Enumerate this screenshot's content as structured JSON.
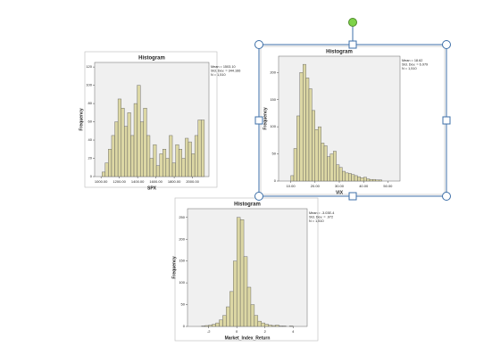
{
  "chart_data": [
    {
      "type": "histogram",
      "title": "Histogram",
      "x_label": "SPX",
      "y_label": "Frequency",
      "stats": [
        "Mean = 1503.10",
        "Std. Dev. = 344.166",
        "N = 1,510"
      ],
      "bins": [
        1010,
        1045,
        1080,
        1115,
        1150,
        1185,
        1220,
        1255,
        1290,
        1325,
        1360,
        1395,
        1430,
        1465,
        1500,
        1535,
        1570,
        1605,
        1640,
        1675,
        1710,
        1745,
        1780,
        1815,
        1850,
        1885,
        1920,
        1955,
        1990,
        2025,
        2060,
        2095,
        2130
      ],
      "values": [
        5,
        15,
        30,
        45,
        60,
        85,
        75,
        55,
        70,
        45,
        80,
        100,
        60,
        75,
        45,
        20,
        35,
        12,
        25,
        30,
        20,
        45,
        15,
        35,
        30,
        20,
        42,
        38,
        25,
        45,
        62,
        62
      ],
      "color": "#dcd7a4",
      "xlim": [
        930,
        2180
      ],
      "xticks": [
        {
          "value": 1000,
          "label": "1000.00"
        },
        {
          "value": 1200,
          "label": "1200.00"
        },
        {
          "value": 1400,
          "label": "1400.00"
        },
        {
          "value": 1600,
          "label": "1600.00"
        },
        {
          "value": 1800,
          "label": "1800.00"
        },
        {
          "value": 2000,
          "label": "2000.00"
        }
      ],
      "ylim": [
        0,
        125
      ],
      "yticks": [
        0,
        20,
        40,
        60,
        80,
        100,
        120
      ]
    },
    {
      "type": "histogram",
      "title": "Histogram",
      "x_label": "VIX",
      "y_label": "Frequency",
      "stats": [
        "Mean = 18.62",
        "Std. Dev. = 6.979",
        "N = 1,510"
      ],
      "bins": [
        10,
        11.25,
        12.5,
        13.75,
        15,
        16.25,
        17.5,
        18.75,
        20,
        21.25,
        22.5,
        23.75,
        25,
        26.25,
        27.5,
        28.75,
        30,
        31.25,
        32.5,
        33.75,
        35,
        36.25,
        37.5,
        38.75,
        40,
        41.25,
        42.5,
        43.75,
        45,
        46.25,
        47.5
      ],
      "values": [
        10,
        60,
        120,
        200,
        215,
        190,
        170,
        130,
        95,
        100,
        70,
        65,
        45,
        50,
        55,
        30,
        25,
        18,
        15,
        14,
        12,
        10,
        8,
        6,
        7,
        4,
        3,
        3,
        2,
        2
      ],
      "color": "#dcd7a4",
      "xlim": [
        5,
        55
      ],
      "xticks": [
        {
          "value": 10,
          "label": "10.00"
        },
        {
          "value": 20,
          "label": "20.00"
        },
        {
          "value": 30,
          "label": "30.00"
        },
        {
          "value": 40,
          "label": "40.00"
        },
        {
          "value": 50,
          "label": "50.00"
        }
      ],
      "ylim": [
        0,
        230
      ],
      "yticks": [
        0,
        50,
        100,
        150,
        200
      ]
    },
    {
      "type": "histogram",
      "title": "Histogram",
      "x_label": "Market_Index_Return",
      "y_label": "Frequency",
      "stats": [
        "Mean = -3.03E-4",
        "Std. Dev. = .972",
        "N = 1,510"
      ],
      "bins": [
        -2.5,
        -2.25,
        -2,
        -1.75,
        -1.5,
        -1.25,
        -1,
        -0.75,
        -0.5,
        -0.25,
        0,
        0.25,
        0.5,
        0.75,
        1,
        1.25,
        1.5,
        1.75,
        2,
        2.25,
        2.5,
        2.75,
        3,
        3.25,
        3.5,
        3.75,
        4
      ],
      "values": [
        1,
        2,
        3,
        5,
        8,
        15,
        25,
        45,
        80,
        150,
        250,
        245,
        160,
        90,
        50,
        25,
        12,
        8,
        5,
        3,
        2,
        3,
        1,
        1,
        0,
        1
      ],
      "color": "#dcd7a4",
      "xlim": [
        -3.5,
        5
      ],
      "xticks": [
        -2,
        0,
        2,
        4
      ],
      "ylim": [
        0,
        270
      ],
      "yticks": [
        0,
        50,
        100,
        150,
        200,
        250
      ]
    }
  ]
}
